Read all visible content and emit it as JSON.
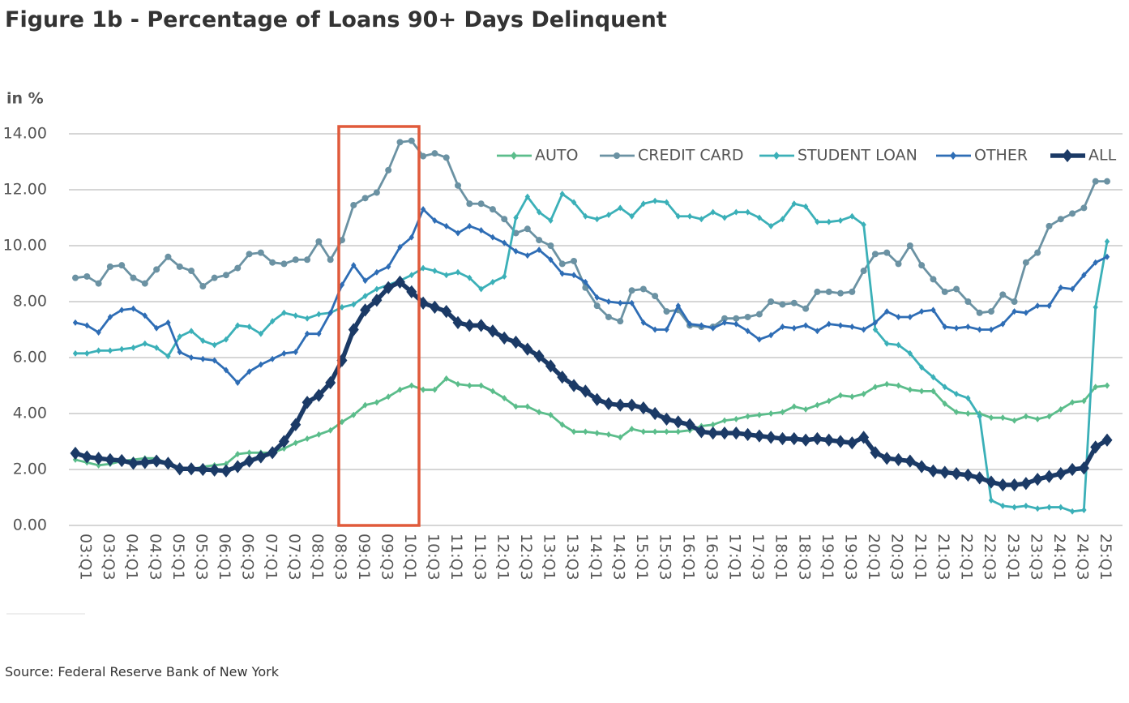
{
  "chart_data": {
    "type": "line",
    "title": "Figure 1b - Percentage of Loans 90+ Days Delinquent",
    "y_label": "in %",
    "source": "Source: Federal Reserve Bank of New York",
    "categories": [
      "03:Q1",
      null,
      "03:Q3",
      null,
      "04:Q1",
      null,
      "04:Q3",
      null,
      "05:Q1",
      null,
      "05:Q3",
      null,
      "06:Q1",
      null,
      "06:Q3",
      null,
      "07:Q1",
      null,
      "07:Q3",
      null,
      "08:Q1",
      null,
      "08:Q3",
      null,
      "09:Q1",
      null,
      "09:Q3",
      null,
      "10:Q1",
      null,
      "10:Q3",
      null,
      "11:Q1",
      null,
      "11:Q3",
      null,
      "12:Q1",
      null,
      "12:Q3",
      null,
      "13:Q1",
      null,
      "13:Q3",
      null,
      "14:Q1",
      null,
      "14:Q3",
      null,
      "15:Q1",
      null,
      "15:Q3",
      null,
      "16:Q1",
      null,
      "16:Q3",
      null,
      "17:Q1",
      null,
      "17:Q3",
      null,
      "18:Q1",
      null,
      "18:Q3",
      null,
      "19:Q1",
      null,
      "19:Q3",
      null,
      "20:Q1",
      null,
      "20:Q3",
      null,
      "21:Q1",
      null,
      "21:Q3",
      null,
      "22:Q1",
      null,
      "22:Q3",
      null,
      "23:Q1",
      null,
      "23:Q3",
      null,
      "24:Q1",
      null,
      "24:Q3",
      null,
      "25:Q1",
      null
    ],
    "series": [
      {
        "name": "AUTO",
        "color": "#5bbd8b",
        "marker": "diamond",
        "values": [
          2.35,
          2.25,
          2.15,
          2.2,
          2.3,
          2.35,
          2.4,
          2.4,
          2.2,
          2.05,
          2.0,
          2.1,
          2.15,
          2.2,
          2.55,
          2.6,
          2.6,
          2.6,
          2.75,
          2.95,
          3.1,
          3.25,
          3.4,
          3.7,
          3.95,
          4.3,
          4.4,
          4.6,
          4.85,
          5.0,
          4.85,
          4.85,
          5.25,
          5.05,
          5.0,
          5.0,
          4.8,
          4.55,
          4.25,
          4.25,
          4.05,
          3.95,
          3.6,
          3.35,
          3.35,
          3.3,
          3.25,
          3.15,
          3.45,
          3.35,
          3.35,
          3.35,
          3.35,
          3.4,
          3.55,
          3.6,
          3.75,
          3.8,
          3.9,
          3.95,
          4.0,
          4.05,
          4.25,
          4.15,
          4.3,
          4.45,
          4.65,
          4.6,
          4.7,
          4.95,
          5.05,
          5.0,
          4.85,
          4.8,
          4.8,
          4.35,
          4.05,
          4.0,
          4.0,
          3.85,
          3.85,
          3.75,
          3.9,
          3.8,
          3.9,
          4.15,
          4.4,
          4.45,
          4.95,
          5.0
        ]
      },
      {
        "name": "CREDIT CARD",
        "color": "#6b92a3",
        "marker": "circle",
        "values": [
          8.85,
          8.9,
          8.65,
          9.25,
          9.3,
          8.85,
          8.65,
          9.15,
          9.6,
          9.25,
          9.1,
          8.55,
          8.85,
          8.95,
          9.2,
          9.7,
          9.75,
          9.4,
          9.35,
          9.5,
          9.5,
          10.15,
          9.5,
          10.2,
          11.45,
          11.7,
          11.9,
          12.7,
          13.7,
          13.75,
          13.2,
          13.3,
          13.15,
          12.15,
          11.5,
          11.5,
          11.3,
          10.95,
          10.45,
          10.6,
          10.2,
          10.0,
          9.35,
          9.45,
          8.5,
          7.85,
          7.45,
          7.3,
          8.4,
          8.45,
          8.2,
          7.65,
          7.7,
          7.15,
          7.1,
          7.1,
          7.4,
          7.4,
          7.45,
          7.55,
          8.0,
          7.9,
          7.95,
          7.75,
          8.35,
          8.35,
          8.3,
          8.35,
          9.1,
          9.7,
          9.75,
          9.35,
          10.0,
          9.3,
          8.8,
          8.35,
          8.45,
          8.0,
          7.6,
          7.65,
          8.25,
          8.0,
          9.4,
          9.75,
          10.7,
          10.95,
          11.15,
          11.35,
          12.3,
          12.3
        ]
      },
      {
        "name": "STUDENT LOAN",
        "color": "#3bb0b8",
        "marker": "diamond",
        "values": [
          6.15,
          6.15,
          6.25,
          6.25,
          6.3,
          6.35,
          6.5,
          6.35,
          6.05,
          6.75,
          6.95,
          6.6,
          6.45,
          6.65,
          7.15,
          7.1,
          6.85,
          7.3,
          7.6,
          7.5,
          7.4,
          7.55,
          7.6,
          7.8,
          7.9,
          8.2,
          8.45,
          8.6,
          8.75,
          8.95,
          9.2,
          9.1,
          8.95,
          9.05,
          8.85,
          8.45,
          8.7,
          8.9,
          11.0,
          11.75,
          11.2,
          10.9,
          11.85,
          11.55,
          11.05,
          10.95,
          11.1,
          11.35,
          11.05,
          11.5,
          11.6,
          11.55,
          11.05,
          11.05,
          10.95,
          11.2,
          11.0,
          11.2,
          11.2,
          11.0,
          10.7,
          10.95,
          11.5,
          11.4,
          10.85,
          10.85,
          10.9,
          11.05,
          10.75,
          7.0,
          6.5,
          6.45,
          6.15,
          5.65,
          5.3,
          4.95,
          4.7,
          4.55,
          3.9,
          0.9,
          0.7,
          0.65,
          0.7,
          0.6,
          0.65,
          0.65,
          0.5,
          0.55,
          7.8,
          10.15
        ]
      },
      {
        "name": "OTHER",
        "color": "#2e6db5",
        "marker": "diamond",
        "values": [
          7.25,
          7.15,
          6.9,
          7.45,
          7.7,
          7.75,
          7.5,
          7.05,
          7.25,
          6.2,
          6.0,
          5.95,
          5.9,
          5.55,
          5.1,
          5.5,
          5.75,
          5.95,
          6.15,
          6.2,
          6.85,
          6.85,
          7.6,
          8.6,
          9.3,
          8.75,
          9.05,
          9.25,
          9.95,
          10.3,
          11.3,
          10.9,
          10.7,
          10.45,
          10.7,
          10.55,
          10.3,
          10.1,
          9.8,
          9.65,
          9.85,
          9.5,
          9.0,
          8.95,
          8.7,
          8.15,
          8.0,
          7.95,
          7.95,
          7.25,
          7.0,
          7.0,
          7.85,
          7.2,
          7.15,
          7.05,
          7.25,
          7.2,
          6.95,
          6.65,
          6.8,
          7.1,
          7.05,
          7.15,
          6.95,
          7.2,
          7.15,
          7.1,
          7.0,
          7.25,
          7.65,
          7.45,
          7.45,
          7.65,
          7.7,
          7.1,
          7.05,
          7.1,
          7.0,
          7.0,
          7.2,
          7.65,
          7.6,
          7.85,
          7.85,
          8.5,
          8.45,
          8.95,
          9.4,
          9.6
        ]
      },
      {
        "name": "ALL",
        "color": "#1b3a66",
        "marker": "diamond",
        "bold": true,
        "values": [
          2.58,
          2.45,
          2.4,
          2.35,
          2.32,
          2.22,
          2.25,
          2.3,
          2.22,
          2.02,
          2.02,
          2.0,
          1.98,
          1.95,
          2.1,
          2.3,
          2.45,
          2.6,
          3.0,
          3.6,
          4.4,
          4.65,
          5.1,
          5.9,
          7.0,
          7.7,
          8.05,
          8.5,
          8.7,
          8.35,
          7.95,
          7.8,
          7.65,
          7.25,
          7.15,
          7.15,
          6.95,
          6.7,
          6.55,
          6.3,
          6.05,
          5.7,
          5.3,
          5.0,
          4.8,
          4.5,
          4.35,
          4.3,
          4.3,
          4.2,
          4.0,
          3.8,
          3.7,
          3.6,
          3.35,
          3.3,
          3.3,
          3.3,
          3.25,
          3.2,
          3.15,
          3.1,
          3.1,
          3.05,
          3.1,
          3.05,
          3.0,
          2.95,
          3.15,
          2.6,
          2.4,
          2.35,
          2.3,
          2.1,
          1.95,
          1.9,
          1.85,
          1.8,
          1.7,
          1.55,
          1.45,
          1.45,
          1.5,
          1.65,
          1.75,
          1.85,
          2.0,
          2.05,
          2.8,
          3.05
        ]
      }
    ],
    "ylim": [
      0,
      14
    ],
    "yticks": [
      {
        "value": 0,
        "label": "0.00"
      },
      {
        "value": 2,
        "label": "2.00"
      },
      {
        "value": 4,
        "label": "4.00"
      },
      {
        "value": 6,
        "label": "6.00"
      },
      {
        "value": 8,
        "label": "8.00"
      },
      {
        "value": 10,
        "label": "10.00"
      },
      {
        "value": 12,
        "label": "12.00"
      },
      {
        "value": 14,
        "label": "14.00"
      }
    ],
    "grid": true,
    "legend": "top-right"
  }
}
